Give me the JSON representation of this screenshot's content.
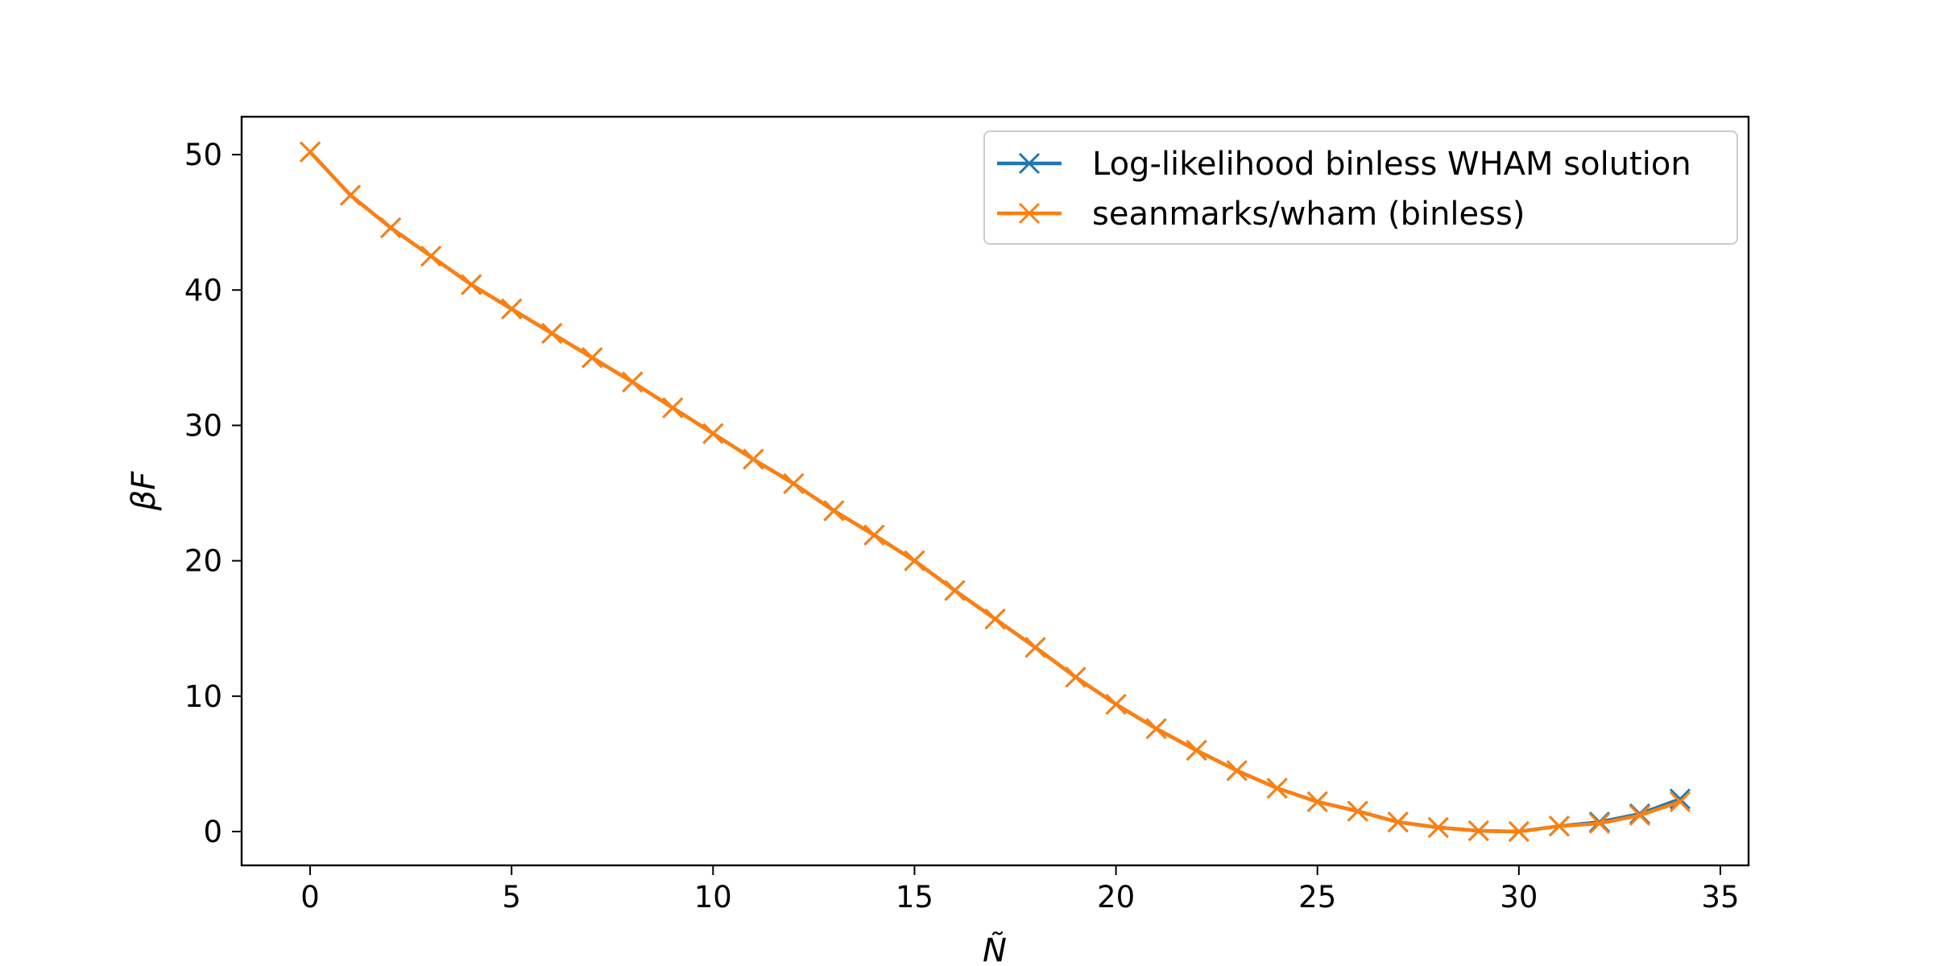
{
  "chart_data": {
    "type": "line",
    "title": "",
    "xlabel": "Ñ",
    "ylabel": "βF",
    "xlim": [
      -1.7,
      35.7
    ],
    "ylim": [
      -2.5,
      52.8
    ],
    "xticks": [
      0,
      5,
      10,
      15,
      20,
      25,
      30,
      35
    ],
    "yticks": [
      0,
      10,
      20,
      30,
      40,
      50
    ],
    "grid": false,
    "legend_position": "top-right",
    "marker": "x",
    "series": [
      {
        "name": "Log-likelihood binless WHAM solution",
        "color": "#1f77b4",
        "x": [
          0,
          1,
          2,
          3,
          4,
          5,
          6,
          7,
          8,
          9,
          10,
          11,
          12,
          13,
          14,
          15,
          16,
          17,
          18,
          19,
          20,
          21,
          22,
          23,
          24,
          25,
          26,
          27,
          28,
          29,
          30,
          31,
          32,
          33,
          34
        ],
        "values": [
          50.2,
          47.0,
          44.6,
          42.5,
          40.4,
          38.6,
          36.8,
          35.0,
          33.2,
          31.3,
          29.4,
          27.5,
          25.7,
          23.7,
          21.9,
          20.0,
          17.8,
          15.7,
          13.6,
          11.4,
          9.4,
          7.6,
          6.0,
          4.5,
          3.2,
          2.2,
          1.5,
          0.7,
          0.3,
          0.05,
          0.0,
          0.4,
          0.7,
          1.3,
          2.4
        ]
      },
      {
        "name": "seanmarks/wham (binless)",
        "color": "#ff7f0e",
        "x": [
          0,
          1,
          2,
          3,
          4,
          5,
          6,
          7,
          8,
          9,
          10,
          11,
          12,
          13,
          14,
          15,
          16,
          17,
          18,
          19,
          20,
          21,
          22,
          23,
          24,
          25,
          26,
          27,
          28,
          29,
          30,
          31,
          32,
          33,
          34
        ],
        "values": [
          50.2,
          47.0,
          44.6,
          42.5,
          40.4,
          38.6,
          36.8,
          35.0,
          33.2,
          31.3,
          29.4,
          27.5,
          25.7,
          23.7,
          21.9,
          20.0,
          17.8,
          15.7,
          13.6,
          11.4,
          9.4,
          7.6,
          6.0,
          4.5,
          3.2,
          2.2,
          1.5,
          0.7,
          0.3,
          0.05,
          0.0,
          0.4,
          0.6,
          1.2,
          2.2
        ]
      }
    ]
  }
}
